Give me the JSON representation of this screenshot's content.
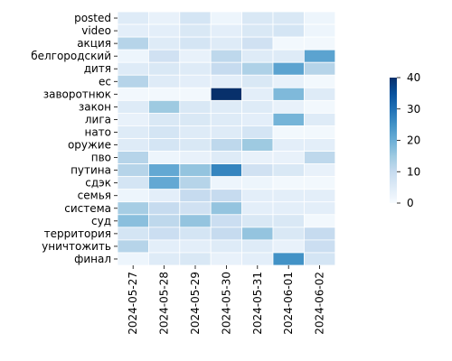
{
  "chart_data": {
    "type": "heatmap",
    "title": "",
    "xlabel": "",
    "ylabel": "",
    "columns": [
      "2024-05-27",
      "2024-05-28",
      "2024-05-29",
      "2024-05-30",
      "2024-05-31",
      "2024-06-01",
      "2024-06-02"
    ],
    "rows": [
      "posted",
      "video",
      "акция",
      "белгородский",
      "дитя",
      "ес",
      "заворотнюк",
      "закон",
      "лига",
      "нато",
      "оружие",
      "пво",
      "путина",
      "сдэк",
      "семья",
      "система",
      "суд",
      "территория",
      "уничтожить",
      "финал"
    ],
    "values": [
      [
        5,
        3,
        7,
        2,
        6,
        6,
        2
      ],
      [
        4,
        4,
        6,
        4,
        6,
        7,
        2
      ],
      [
        12,
        5,
        7,
        5,
        8,
        1,
        1
      ],
      [
        2,
        8,
        3,
        11,
        5,
        5,
        22
      ],
      [
        5,
        6,
        5,
        10,
        13,
        22,
        12
      ],
      [
        12,
        5,
        4,
        4,
        6,
        3,
        1
      ],
      [
        1,
        1,
        1,
        40,
        4,
        18,
        5
      ],
      [
        5,
        15,
        6,
        5,
        5,
        3,
        1
      ],
      [
        3,
        6,
        6,
        5,
        4,
        19,
        5
      ],
      [
        5,
        7,
        5,
        5,
        7,
        1,
        1
      ],
      [
        5,
        7,
        6,
        11,
        15,
        4,
        4
      ],
      [
        12,
        2,
        3,
        5,
        3,
        3,
        11
      ],
      [
        12,
        21,
        16,
        27,
        8,
        6,
        3
      ],
      [
        7,
        21,
        12,
        2,
        2,
        1,
        1
      ],
      [
        2,
        4,
        10,
        10,
        4,
        4,
        4
      ],
      [
        14,
        10,
        8,
        16,
        4,
        4,
        4
      ],
      [
        17,
        11,
        16,
        9,
        6,
        6,
        1
      ],
      [
        7,
        9,
        7,
        10,
        16,
        6,
        10
      ],
      [
        12,
        4,
        4,
        5,
        5,
        3,
        9
      ],
      [
        2,
        5,
        6,
        3,
        4,
        25,
        7
      ]
    ],
    "vmin": 0,
    "vmax": 40,
    "colorbar_ticks": [
      0,
      10,
      20,
      30,
      40
    ],
    "colormap": "Blues",
    "cell_borders": "white"
  }
}
